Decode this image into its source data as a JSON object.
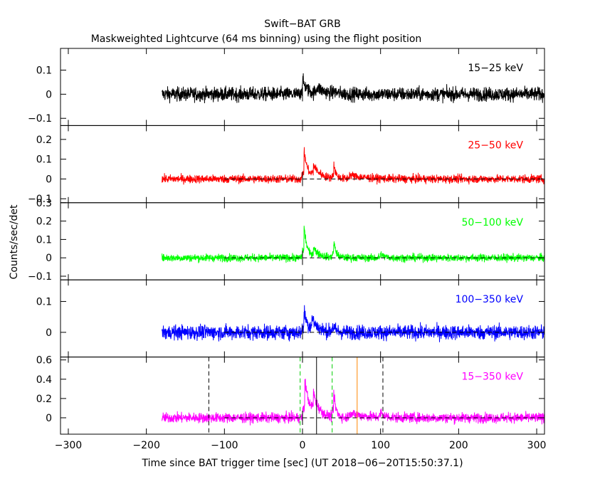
{
  "chart_data": {
    "type": "line",
    "title": "Swift−BAT GRB",
    "subtitle": "Maskweighted Lightcurve (64 ms binning) using the flight position",
    "xlabel": "Time since BAT trigger time [sec] (UT 2018−06−20T15:50:37.1)",
    "ylabel": "Counts/sec/det",
    "xlim": [
      -310,
      310
    ],
    "x_ticks": [
      "−300",
      "−200",
      "−100",
      "0",
      "100",
      "200",
      "300"
    ],
    "x_tick_values": [
      -300,
      -200,
      -100,
      0,
      100,
      200,
      300
    ],
    "panels": [
      {
        "name": "15−25 keV",
        "color": "#000000",
        "ylim": [
          -0.13,
          0.19
        ],
        "y_ticks": [
          "−0.1",
          "0",
          "0.1"
        ],
        "y_tick_values": [
          -0.1,
          0,
          0.1
        ],
        "noise_amp": 0.055,
        "baseline": 0.0,
        "peaks": [
          [
            0,
            0.06,
            6
          ],
          [
            18,
            0.03,
            10
          ],
          [
            40,
            0.01,
            5
          ]
        ],
        "zero_line": false
      },
      {
        "name": "25−50 keV",
        "color": "#ff0000",
        "ylim": [
          -0.12,
          0.27
        ],
        "y_ticks": [
          "−0.1",
          "0",
          "0.1",
          "0.2"
        ],
        "y_tick_values": [
          -0.1,
          0,
          0.1,
          0.2
        ],
        "noise_amp": 0.04,
        "baseline": 0.0,
        "peaks": [
          [
            2,
            0.14,
            5
          ],
          [
            14,
            0.06,
            10
          ],
          [
            40,
            0.07,
            3
          ],
          [
            60,
            0.02,
            20
          ]
        ],
        "zero_line": true
      },
      {
        "name": "50−100 keV",
        "color": "#00ff00",
        "ylim": [
          -0.12,
          0.3
        ],
        "y_ticks": [
          "−0.1",
          "0",
          "0.1",
          "0.2",
          "0.3"
        ],
        "y_tick_values": [
          -0.1,
          0,
          0.1,
          0.2,
          0.3
        ],
        "noise_amp": 0.04,
        "baseline": 0.0,
        "peaks": [
          [
            2,
            0.17,
            4
          ],
          [
            14,
            0.05,
            8
          ],
          [
            40,
            0.09,
            3
          ],
          [
            100,
            0.02,
            5
          ]
        ],
        "zero_line": true
      },
      {
        "name": "100−350 keV",
        "color": "#0000ff",
        "ylim": [
          -0.08,
          0.17
        ],
        "y_ticks": [
          "0",
          "0.1"
        ],
        "y_tick_values": [
          0,
          0.1
        ],
        "noise_amp": 0.045,
        "baseline": 0.0,
        "peaks": [
          [
            2,
            0.07,
            5
          ],
          [
            12,
            0.04,
            8
          ],
          [
            38,
            0.02,
            4
          ]
        ],
        "zero_line": true
      },
      {
        "name": "15−350 keV",
        "color": "#ff00ff",
        "ylim": [
          -0.17,
          0.63
        ],
        "y_ticks": [
          "0",
          "0.2",
          "0.4",
          "0.6"
        ],
        "y_tick_values": [
          0,
          0.2,
          0.4,
          0.6
        ],
        "noise_amp": 0.1,
        "baseline": 0.0,
        "peaks": [
          [
            3,
            0.4,
            6
          ],
          [
            14,
            0.2,
            8
          ],
          [
            40,
            0.25,
            3
          ],
          [
            60,
            0.05,
            20
          ],
          [
            100,
            0.05,
            5
          ]
        ],
        "zero_line": true,
        "markers": [
          {
            "x": -120,
            "color": "#000000",
            "dash": true
          },
          {
            "x": -3,
            "color": "#00cc00",
            "dash": true
          },
          {
            "x": 18,
            "color": "#000000",
            "dash": false
          },
          {
            "x": 38,
            "color": "#00cc00",
            "dash": true
          },
          {
            "x": 70,
            "color": "#ff8800",
            "dash": false
          },
          {
            "x": 103,
            "color": "#000000",
            "dash": true
          }
        ]
      }
    ],
    "data_start": -180,
    "data_end": 310,
    "grid": false
  }
}
